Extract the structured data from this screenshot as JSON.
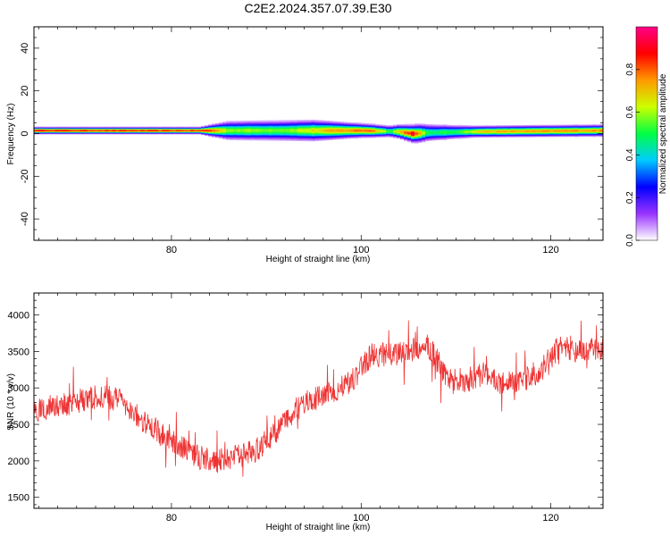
{
  "title": "C2E2.2024.357.07.39.E30",
  "chart_data": [
    {
      "type": "heatmap",
      "xlabel": "Height of straight line (km)",
      "ylabel": "Frequency (Hz)",
      "xlim": [
        65.5,
        125.5
      ],
      "ylim": [
        -50,
        50
      ],
      "x_ticks": [
        "80",
        "100",
        "120"
      ],
      "y_ticks": [
        "40",
        "20",
        "0",
        "-20",
        "-40"
      ],
      "colorbar": {
        "label": "Normalized spectral amplitude",
        "range": [
          0,
          1
        ],
        "ticks": [
          "0.0",
          "0.2",
          "0.4",
          "0.6",
          "0.8"
        ],
        "colors": [
          "#ffffff",
          "#9933ff",
          "#0000ff",
          "#00ccff",
          "#00ff44",
          "#ccff00",
          "#ff9900",
          "#ff0000",
          "#ff0088"
        ]
      },
      "band": {
        "center_freq_hz": [
          [
            65.5,
            1.5
          ],
          [
            100,
            1.5
          ],
          [
            104,
            1.0
          ],
          [
            105.5,
            0.0
          ],
          [
            107,
            0.5
          ],
          [
            112,
            1.0
          ],
          [
            125.5,
            1.5
          ]
        ],
        "halfwidth_hz": [
          [
            65.5,
            1.5
          ],
          [
            83,
            1.5
          ],
          [
            86,
            4.0
          ],
          [
            95,
            4.5
          ],
          [
            100,
            3.0
          ],
          [
            103,
            2.5
          ],
          [
            106,
            4.0
          ],
          [
            108,
            3.5
          ],
          [
            112,
            2.5
          ],
          [
            125.5,
            2.5
          ]
        ],
        "peak_amplitude": [
          [
            65.5,
            0.95
          ],
          [
            70,
            0.9
          ],
          [
            84,
            0.88
          ],
          [
            86,
            0.62
          ],
          [
            92,
            0.6
          ],
          [
            97,
            0.75
          ],
          [
            101,
            0.85
          ],
          [
            103,
            0.55
          ],
          [
            105.5,
            0.97
          ],
          [
            107,
            0.5
          ],
          [
            110,
            0.55
          ],
          [
            113,
            0.75
          ],
          [
            125.5,
            0.8
          ]
        ]
      }
    },
    {
      "type": "line",
      "xlabel": "Height of straight line (km)",
      "ylabel": "SNR (10 * v/v)",
      "xlim": [
        65.5,
        125.5
      ],
      "ylim": [
        1350,
        4300
      ],
      "x_ticks": [
        "80",
        "100",
        "120"
      ],
      "y_ticks": [
        "4000",
        "3500",
        "3000",
        "2500",
        "2000",
        "1500"
      ],
      "series": [
        {
          "color": "#ee3333",
          "noise_amplitude": 170,
          "trend": [
            [
              65.5,
              2700
            ],
            [
              68,
              2750
            ],
            [
              71,
              2850
            ],
            [
              73,
              2900
            ],
            [
              75,
              2800
            ],
            [
              77,
              2550
            ],
            [
              79,
              2350
            ],
            [
              81,
              2200
            ],
            [
              83,
              2050
            ],
            [
              85,
              2000
            ],
            [
              87,
              2050
            ],
            [
              89,
              2150
            ],
            [
              91,
              2400
            ],
            [
              93,
              2700
            ],
            [
              95,
              2850
            ],
            [
              97,
              2950
            ],
            [
              99,
              3100
            ],
            [
              101,
              3450
            ],
            [
              103,
              3450
            ],
            [
              105,
              3500
            ],
            [
              107,
              3600
            ],
            [
              109,
              3150
            ],
            [
              111,
              3100
            ],
            [
              113,
              3200
            ],
            [
              115,
              3050
            ],
            [
              117,
              3100
            ],
            [
              119,
              3250
            ],
            [
              121,
              3600
            ],
            [
              123,
              3500
            ],
            [
              125.5,
              3550
            ]
          ]
        }
      ]
    }
  ]
}
